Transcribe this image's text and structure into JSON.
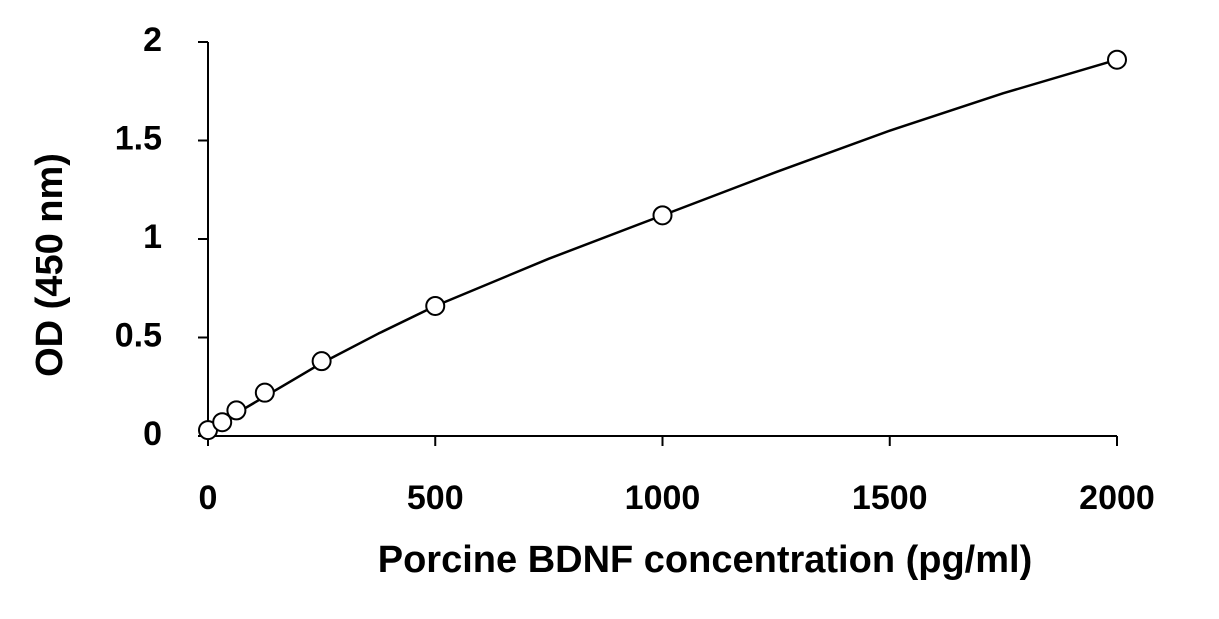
{
  "chart_data": {
    "type": "scatter",
    "x_label": "Porcine BDNF concentration (pg/ml)",
    "y_label": "OD (450 nm)",
    "x": [
      0,
      31.25,
      62.5,
      125,
      250,
      500,
      1000,
      2000
    ],
    "values": [
      0.03,
      0.07,
      0.13,
      0.22,
      0.38,
      0.66,
      1.12,
      1.91
    ],
    "color": "#000000",
    "curve": {
      "x": [
        0,
        125,
        250,
        375,
        500,
        750,
        1000,
        1250,
        1500,
        1750,
        2000
      ],
      "values": [
        0.03,
        0.2,
        0.37,
        0.52,
        0.66,
        0.9,
        1.12,
        1.34,
        1.55,
        1.74,
        1.91
      ]
    },
    "xlim": [
      0,
      2000
    ],
    "xticks": [
      0,
      500,
      1000,
      1500,
      2000
    ],
    "ylim": [
      0,
      2
    ],
    "yticks": [
      0,
      0.5,
      1,
      1.5,
      2
    ],
    "grid": false
  }
}
